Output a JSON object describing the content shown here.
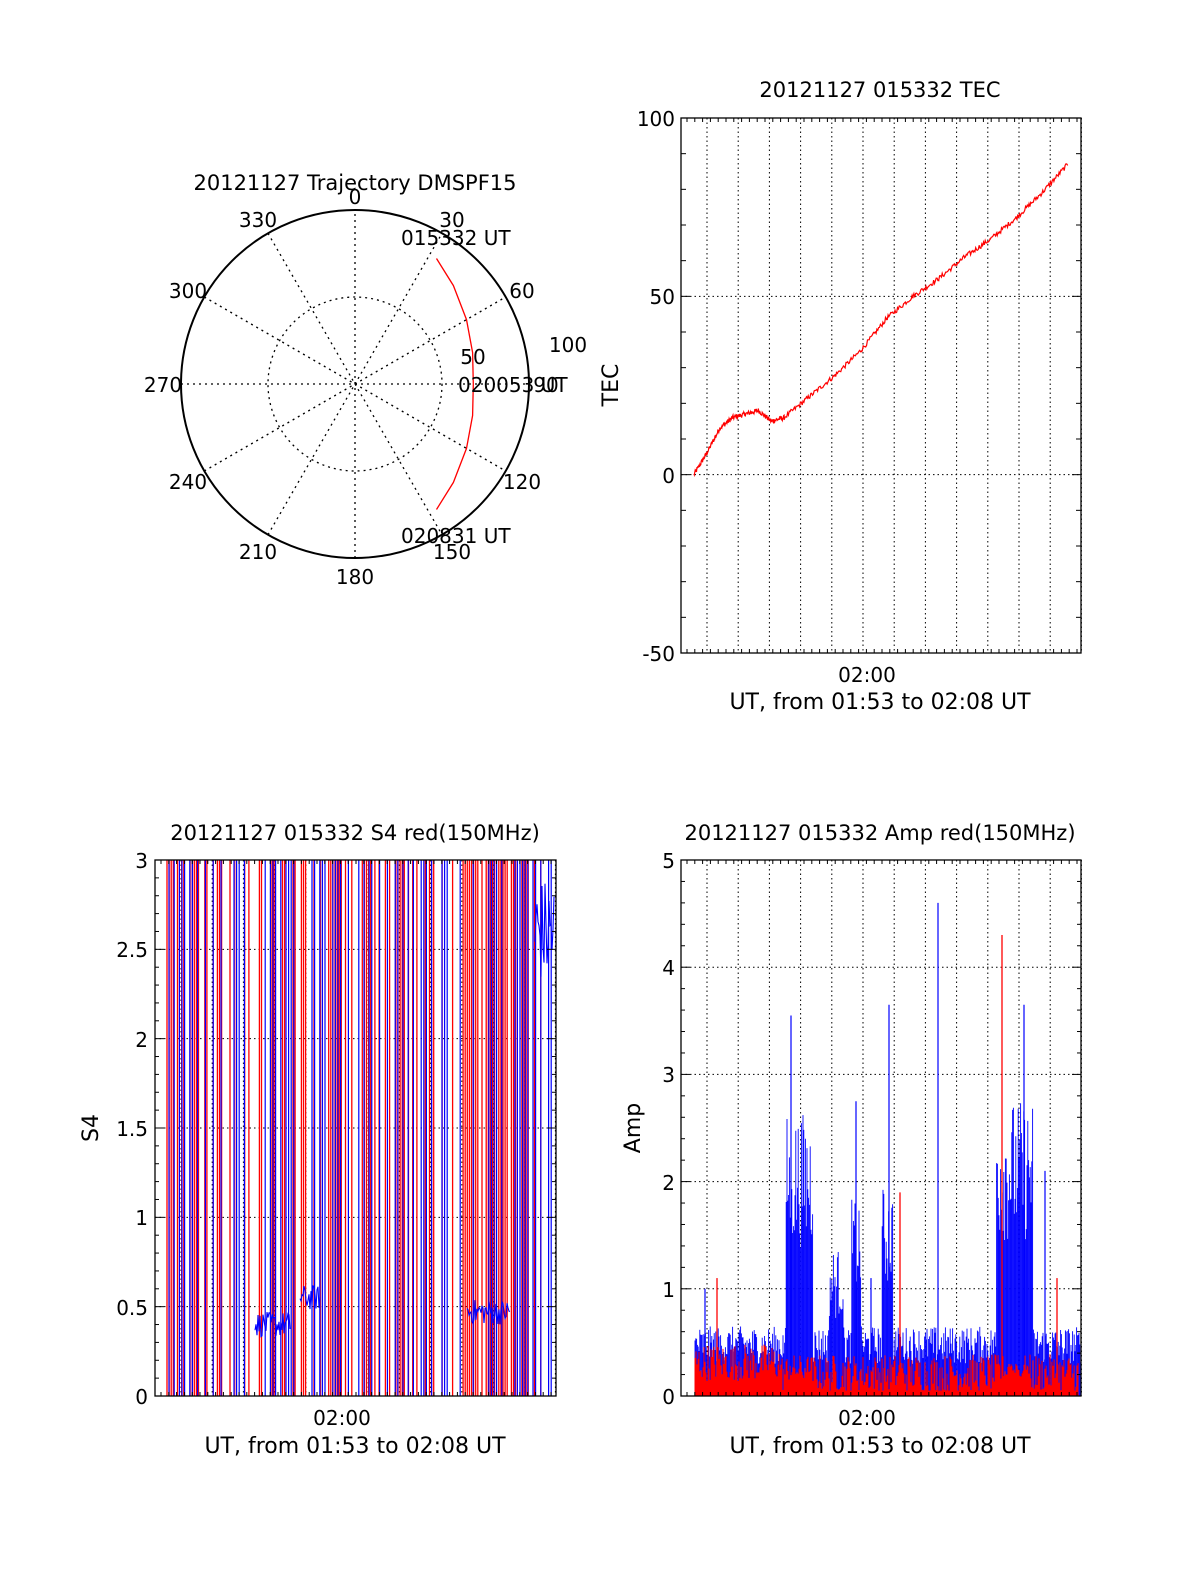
{
  "colors": {
    "red": "#ff0000",
    "blue": "#0000ff",
    "axis": "#000000",
    "grid": "#000000"
  },
  "chart_data": [
    {
      "id": "trajectory",
      "type": "polar",
      "title": "20121127 Trajectory DMSPF15",
      "azimuth_labels": [
        "0",
        "30",
        "60",
        "90",
        "120",
        "150",
        "180",
        "210",
        "240",
        "270",
        "300",
        "330"
      ],
      "radial_labels": [
        "50",
        "100"
      ],
      "annotations": {
        "start": "015332 UT",
        "middle": "020053 UT",
        "end": "020831 UT"
      },
      "track": {
        "start_time": "015332",
        "end_time": "020831",
        "points": [
          [
            33,
            86
          ],
          [
            45,
            80
          ],
          [
            60,
            74
          ],
          [
            75,
            70
          ],
          [
            90,
            68
          ],
          [
            105,
            70
          ],
          [
            120,
            74
          ],
          [
            135,
            80
          ],
          [
            147,
            86
          ]
        ]
      },
      "grid": true
    },
    {
      "id": "tec",
      "type": "line",
      "title": "20121127 015332 TEC",
      "ylabel": "TEC",
      "xlabel": "UT, from 01:53 to 02:08 UT",
      "xtick_labels": [
        "02:00"
      ],
      "ytick_labels": [
        "-50",
        "0",
        "50",
        "100"
      ],
      "ylim": [
        -50,
        100
      ],
      "grid": true,
      "series": [
        {
          "color": "#ff0000",
          "x": [
            "01:53:30",
            "01:54:00",
            "01:54:30",
            "01:55:00",
            "01:55:30",
            "01:56:00",
            "01:56:30",
            "01:57:00",
            "01:58:00",
            "01:59:00",
            "02:00:00",
            "02:01:00",
            "02:02:00",
            "02:03:00",
            "02:04:00",
            "02:05:00",
            "02:06:00",
            "02:07:00",
            "02:08:00"
          ],
          "y": [
            0,
            6,
            13,
            16,
            17,
            18,
            15,
            16,
            22,
            28,
            35,
            44,
            50,
            55,
            61,
            66,
            72,
            79,
            87
          ]
        }
      ]
    },
    {
      "id": "s4",
      "type": "line",
      "title": "20121127 015332 S4 red(150MHz)",
      "ylabel": "S4",
      "xlabel": "UT, from 01:53 to 02:08 UT",
      "xtick_labels": [
        "02:00"
      ],
      "ytick_labels": [
        "0",
        "0.5",
        "1",
        "1.5",
        "2",
        "2.5",
        "3"
      ],
      "ylim": [
        0,
        3
      ],
      "grid": true,
      "series": [
        {
          "color": "#ff0000",
          "note_level": [
            0.4,
            0.45,
            0.5
          ]
        },
        {
          "color": "#0000ff",
          "note_level": [
            0.38,
            0.65,
            0.45
          ]
        }
      ]
    },
    {
      "id": "amp",
      "type": "line",
      "title": "20121127 015332 Amp red(150MHz)",
      "ylabel": "Amp",
      "xlabel": "UT, from 01:53 to 02:08 UT",
      "xtick_labels": [
        "02:00"
      ],
      "ytick_labels": [
        "0",
        "1",
        "2",
        "3",
        "4",
        "5"
      ],
      "ylim": [
        0,
        5
      ],
      "grid": true,
      "series": [
        {
          "color": "#ff0000",
          "peaks": [
            1.1,
            1.9,
            4.3
          ]
        },
        {
          "color": "#0000ff",
          "peaks": [
            3.55,
            2.75,
            3.65,
            4.6,
            3.65
          ]
        }
      ]
    }
  ]
}
